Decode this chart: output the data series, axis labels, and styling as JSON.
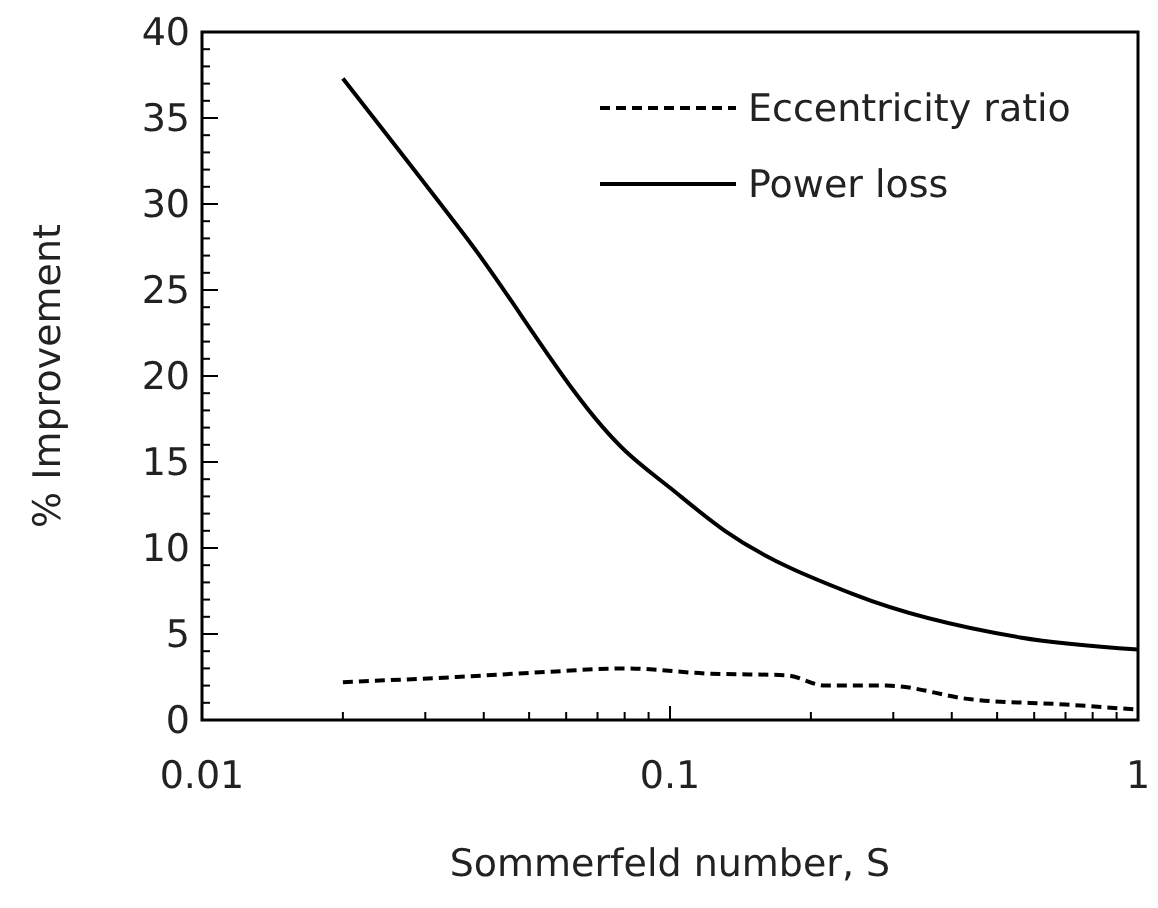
{
  "chart_data": {
    "type": "line",
    "xlabel": "Sommerfeld number, S",
    "ylabel": "% Improvement",
    "log": "x",
    "xlim": [
      0.01,
      1
    ],
    "xticks": [
      0.01,
      0.1,
      1
    ],
    "ylim": [
      0,
      40
    ],
    "yticks": [
      0,
      5,
      10,
      15,
      20,
      25,
      30,
      35,
      40
    ],
    "legend": "top right",
    "grid": false,
    "marker": "none",
    "series": [
      {
        "name": "Eccentricity ratio",
        "color": "#000000",
        "line_style": "dashed",
        "x": [
          0.02,
          0.035,
          0.055,
          0.08,
          0.12,
          0.177,
          0.215,
          0.29,
          0.44,
          0.7,
          1
        ],
        "values": [
          2.2,
          2.5,
          2.8,
          3.0,
          2.7,
          2.6,
          2.0,
          2.0,
          1.2,
          0.9,
          0.6
        ]
      },
      {
        "name": "Power loss",
        "color": "#000000",
        "line_style": "solid",
        "x": [
          0.02,
          0.0366,
          0.0806,
          0.1,
          0.131,
          0.247,
          0.56,
          1
        ],
        "values": [
          37.3,
          28.1,
          15.6,
          13.5,
          11.0,
          7.3,
          4.8,
          4.1
        ]
      }
    ]
  }
}
